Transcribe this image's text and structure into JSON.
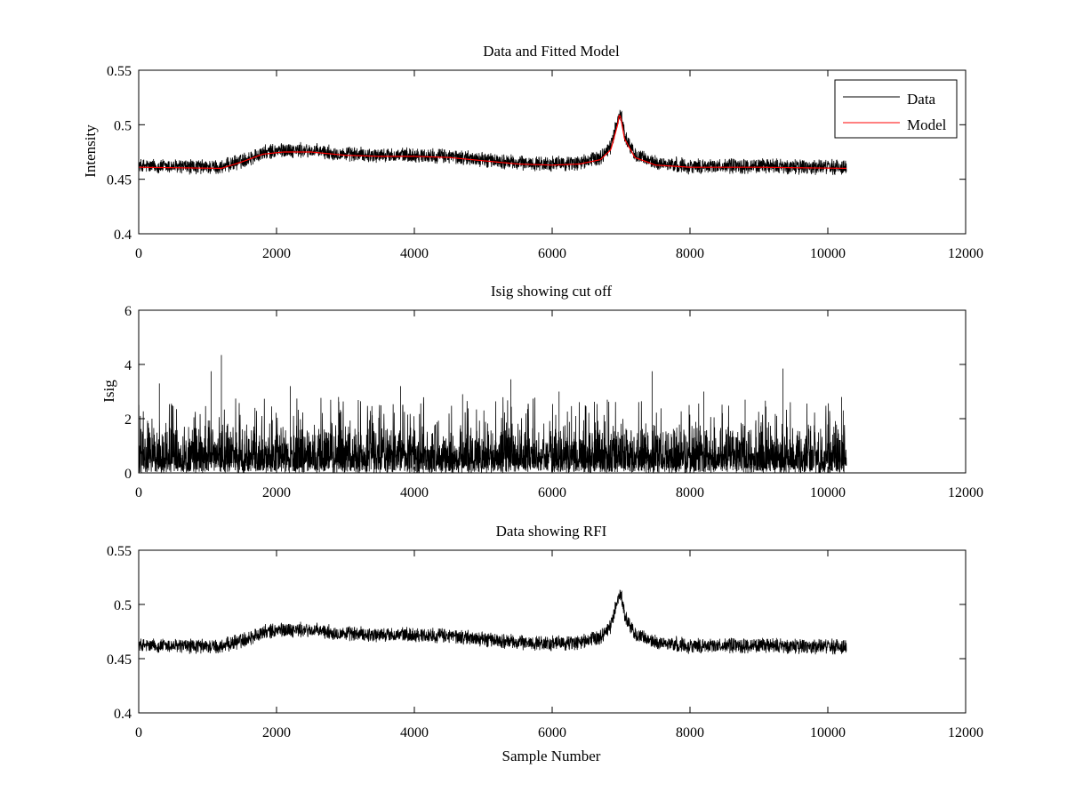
{
  "chart_data": [
    {
      "type": "line",
      "title": "Data and Fitted Model",
      "xlabel": "",
      "ylabel": "Intensity",
      "xlim": [
        0,
        12000
      ],
      "ylim": [
        0.4,
        0.55
      ],
      "xticks": [
        "0",
        "2000",
        "4000",
        "6000",
        "8000",
        "10000",
        "12000"
      ],
      "yticks": [
        "0.4",
        "0.45",
        "0.5",
        "0.55"
      ],
      "legend_position": "top-right",
      "series": [
        {
          "name": "Data",
          "color": "#000000",
          "x_range": [
            0,
            10270
          ],
          "baseline": [
            [
              0,
              0.462
            ],
            [
              1200,
              0.461
            ],
            [
              1500,
              0.467
            ],
            [
              1800,
              0.474
            ],
            [
              2100,
              0.477
            ],
            [
              2500,
              0.476
            ],
            [
              3000,
              0.473
            ],
            [
              3500,
              0.472
            ],
            [
              4000,
              0.472
            ],
            [
              4500,
              0.471
            ],
            [
              5000,
              0.468
            ],
            [
              5500,
              0.465
            ],
            [
              6000,
              0.464
            ],
            [
              6400,
              0.465
            ],
            [
              6700,
              0.47
            ],
            [
              6850,
              0.48
            ],
            [
              6950,
              0.505
            ],
            [
              7000,
              0.51
            ],
            [
              7050,
              0.49
            ],
            [
              7200,
              0.472
            ],
            [
              7500,
              0.465
            ],
            [
              8000,
              0.462
            ],
            [
              9000,
              0.462
            ],
            [
              10270,
              0.461
            ]
          ],
          "noise_amplitude": 0.006
        },
        {
          "name": "Model",
          "color": "#ff0000",
          "points": [
            [
              0,
              0.461
            ],
            [
              1200,
              0.46
            ],
            [
              1500,
              0.466
            ],
            [
              1800,
              0.473
            ],
            [
              2100,
              0.475
            ],
            [
              2500,
              0.475
            ],
            [
              3000,
              0.472
            ],
            [
              3500,
              0.471
            ],
            [
              4000,
              0.471
            ],
            [
              4500,
              0.47
            ],
            [
              5000,
              0.467
            ],
            [
              5500,
              0.464
            ],
            [
              6000,
              0.463
            ],
            [
              6400,
              0.464
            ],
            [
              6700,
              0.468
            ],
            [
              6850,
              0.477
            ],
            [
              6950,
              0.5
            ],
            [
              6975,
              0.51
            ],
            [
              7000,
              0.505
            ],
            [
              7050,
              0.487
            ],
            [
              7200,
              0.47
            ],
            [
              7500,
              0.463
            ],
            [
              8000,
              0.461
            ],
            [
              9000,
              0.461
            ],
            [
              10270,
              0.46
            ]
          ]
        }
      ]
    },
    {
      "type": "line",
      "title": "Isig showing cut off",
      "xlabel": "",
      "ylabel": "Isig",
      "xlim": [
        0,
        12000
      ],
      "ylim": [
        0,
        6
      ],
      "xticks": [
        "0",
        "2000",
        "4000",
        "6000",
        "8000",
        "10000",
        "12000"
      ],
      "yticks": [
        "0",
        "2",
        "4",
        "6"
      ],
      "series": [
        {
          "name": "Isig",
          "color": "#000000",
          "x_range": [
            0,
            10270
          ],
          "typical_max": 1.6,
          "peaks": [
            [
              1200,
              4.35
            ],
            [
              9350,
              3.85
            ],
            [
              1050,
              3.75
            ],
            [
              7450,
              3.75
            ],
            [
              5400,
              3.45
            ],
            [
              300,
              3.3
            ],
            [
              2200,
              3.2
            ],
            [
              3800,
              3.2
            ],
            [
              6100,
              3.0
            ],
            [
              8200,
              3.0
            ],
            [
              10200,
              2.8
            ],
            [
              4700,
              2.9
            ],
            [
              2900,
              2.8
            ],
            [
              6800,
              2.7
            ],
            [
              8800,
              2.7
            ]
          ]
        }
      ]
    },
    {
      "type": "line",
      "title": "Data showing RFI",
      "xlabel": "Sample Number",
      "ylabel": "",
      "xlim": [
        0,
        12000
      ],
      "ylim": [
        0.4,
        0.55
      ],
      "xticks": [
        "0",
        "2000",
        "4000",
        "6000",
        "8000",
        "10000",
        "12000"
      ],
      "yticks": [
        "0.4",
        "0.45",
        "0.5",
        "0.55"
      ],
      "series": [
        {
          "name": "Data",
          "color": "#000000",
          "x_range": [
            0,
            10270
          ],
          "same_as": "Data and Fitted Model / Data",
          "noise_amplitude": 0.006
        }
      ]
    }
  ]
}
